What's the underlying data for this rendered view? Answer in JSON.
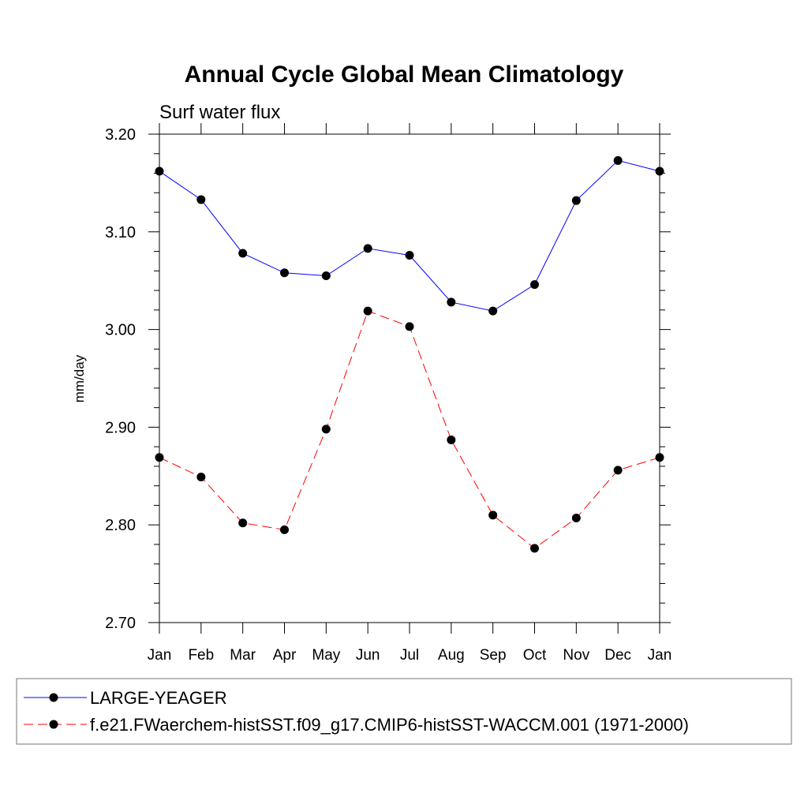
{
  "chart_data": {
    "type": "line",
    "title": "Annual Cycle Global Mean Climatology",
    "subtitle": "Surf water flux",
    "ylabel": "mm/day",
    "xlabel": "",
    "ylim": [
      2.7,
      3.2
    ],
    "yticks": [
      2.7,
      2.8,
      2.9,
      3.0,
      3.1,
      3.2
    ],
    "ytick_labels": [
      "2.70",
      "2.80",
      "2.90",
      "3.00",
      "3.10",
      "3.20"
    ],
    "categories": [
      "Jan",
      "Feb",
      "Mar",
      "Apr",
      "May",
      "Jun",
      "Jul",
      "Aug",
      "Sep",
      "Oct",
      "Nov",
      "Dec",
      "Jan"
    ],
    "grid": false,
    "legend_position": "bottom",
    "series": [
      {
        "name": "LARGE-YEAGER",
        "color": "#0000ff",
        "dash": "solid",
        "marker": "filled-circle",
        "values": [
          3.162,
          3.133,
          3.078,
          3.058,
          3.055,
          3.083,
          3.076,
          3.028,
          3.019,
          3.046,
          3.132,
          3.173,
          3.162
        ]
      },
      {
        "name": "f.e21.FWaerchem-histSST.f09_g17.CMIP6-histSST-WACCM.001 (1971-2000)",
        "color": "#ff0000",
        "dash": "dashed",
        "marker": "filled-circle",
        "values": [
          2.869,
          2.849,
          2.802,
          2.795,
          2.898,
          3.019,
          3.003,
          2.887,
          2.81,
          2.776,
          2.807,
          2.856,
          2.869
        ]
      }
    ]
  }
}
